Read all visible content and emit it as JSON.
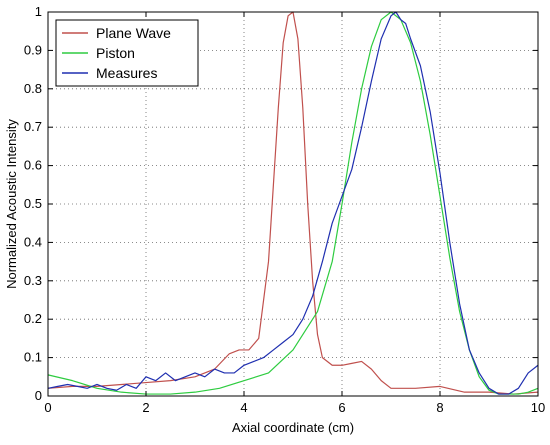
{
  "chart_data": {
    "type": "line",
    "title": "",
    "xlabel": "Axial coordinate (cm)",
    "ylabel": "Normalized Acoustic Intensity",
    "xlim": [
      0,
      10
    ],
    "ylim": [
      0,
      1
    ],
    "xticks": [
      0,
      2,
      4,
      6,
      8,
      10
    ],
    "yticks": [
      0,
      0.1,
      0.2,
      0.3,
      0.4,
      0.5,
      0.6,
      0.7,
      0.8,
      0.9,
      1
    ],
    "xtick_labels": [
      "0",
      "2",
      "4",
      "6",
      "8",
      "10"
    ],
    "ytick_labels": [
      "0",
      "0.1",
      "0.2",
      "0.3",
      "0.4",
      "0.5",
      "0.6",
      "0.7",
      "0.8",
      "0.9",
      "1"
    ],
    "grid": true,
    "legend_position": "top-left",
    "series": [
      {
        "name": "Plane Wave",
        "color": "#c0504d",
        "x": [
          0,
          0.5,
          1.0,
          1.5,
          2.0,
          2.5,
          3.0,
          3.4,
          3.7,
          3.9,
          4.1,
          4.3,
          4.5,
          4.6,
          4.7,
          4.8,
          4.9,
          5.0,
          5.1,
          5.2,
          5.3,
          5.4,
          5.5,
          5.6,
          5.8,
          6.0,
          6.2,
          6.4,
          6.6,
          6.8,
          7.0,
          7.5,
          8.0,
          8.5,
          9.0,
          9.5,
          10.0
        ],
        "y": [
          0.02,
          0.025,
          0.025,
          0.03,
          0.035,
          0.04,
          0.05,
          0.07,
          0.11,
          0.12,
          0.12,
          0.15,
          0.35,
          0.55,
          0.75,
          0.92,
          0.99,
          1.0,
          0.93,
          0.75,
          0.5,
          0.3,
          0.16,
          0.1,
          0.08,
          0.08,
          0.085,
          0.09,
          0.07,
          0.04,
          0.02,
          0.02,
          0.025,
          0.01,
          0.01,
          0.005,
          0.01
        ]
      },
      {
        "name": "Piston",
        "color": "#2ecc40",
        "x": [
          0,
          0.5,
          1.0,
          1.5,
          2.0,
          2.5,
          3.0,
          3.5,
          4.0,
          4.5,
          5.0,
          5.5,
          5.8,
          6.0,
          6.2,
          6.4,
          6.6,
          6.8,
          7.0,
          7.2,
          7.4,
          7.6,
          7.8,
          8.0,
          8.2,
          8.4,
          8.6,
          8.8,
          9.0,
          9.2,
          9.4,
          9.6,
          9.8,
          10.0
        ],
        "y": [
          0.055,
          0.04,
          0.02,
          0.01,
          0.005,
          0.005,
          0.01,
          0.02,
          0.04,
          0.06,
          0.12,
          0.22,
          0.35,
          0.5,
          0.66,
          0.8,
          0.91,
          0.98,
          1.0,
          0.98,
          0.92,
          0.82,
          0.68,
          0.52,
          0.36,
          0.22,
          0.12,
          0.05,
          0.015,
          0.005,
          0.005,
          0.005,
          0.01,
          0.02
        ]
      },
      {
        "name": "Measures",
        "color": "#1f2fb0",
        "x": [
          0,
          0.2,
          0.4,
          0.6,
          0.8,
          1.0,
          1.2,
          1.4,
          1.6,
          1.8,
          2.0,
          2.2,
          2.4,
          2.6,
          2.8,
          3.0,
          3.2,
          3.4,
          3.6,
          3.8,
          4.0,
          4.2,
          4.4,
          4.6,
          4.8,
          5.0,
          5.2,
          5.4,
          5.6,
          5.8,
          6.0,
          6.2,
          6.4,
          6.6,
          6.8,
          7.0,
          7.1,
          7.2,
          7.3,
          7.4,
          7.6,
          7.8,
          8.0,
          8.2,
          8.4,
          8.6,
          8.8,
          9.0,
          9.2,
          9.4,
          9.6,
          9.8,
          10.0
        ],
        "y": [
          0.02,
          0.025,
          0.03,
          0.025,
          0.02,
          0.03,
          0.02,
          0.015,
          0.03,
          0.02,
          0.05,
          0.04,
          0.06,
          0.04,
          0.05,
          0.06,
          0.05,
          0.07,
          0.06,
          0.06,
          0.08,
          0.09,
          0.1,
          0.12,
          0.14,
          0.16,
          0.2,
          0.26,
          0.35,
          0.45,
          0.52,
          0.59,
          0.7,
          0.82,
          0.93,
          0.99,
          1.0,
          0.98,
          0.97,
          0.93,
          0.86,
          0.74,
          0.58,
          0.4,
          0.24,
          0.12,
          0.06,
          0.02,
          0.005,
          0.005,
          0.02,
          0.06,
          0.08
        ]
      }
    ]
  }
}
